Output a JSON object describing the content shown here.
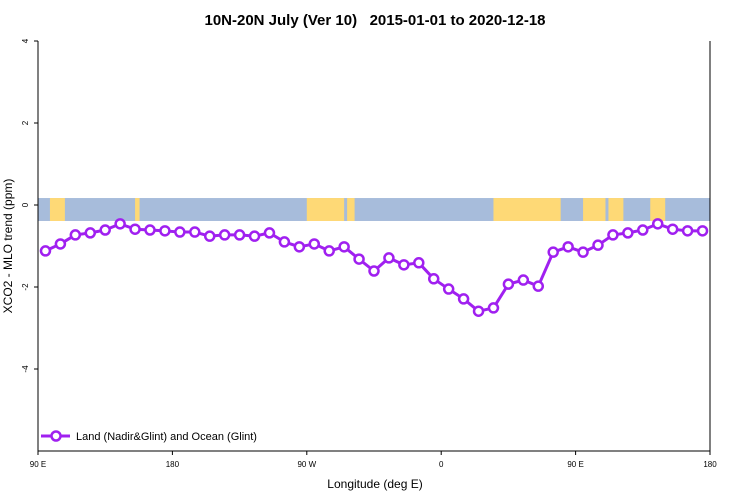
{
  "chart_data": {
    "type": "line",
    "title": "10N-20N July (Ver 10)   2015-01-01 to 2020-12-18",
    "xlabel": "Longitude (deg E)",
    "ylabel": "XCO2 - MLO trend (ppm)",
    "xlim": [
      90,
      540
    ],
    "ylim": [
      -6,
      4
    ],
    "x_ticks": [
      {
        "value": 90,
        "label": "90 E"
      },
      {
        "value": 180,
        "label": "180"
      },
      {
        "value": 270,
        "label": "90 W"
      },
      {
        "value": 360,
        "label": "0"
      },
      {
        "value": 450,
        "label": "90 E"
      },
      {
        "value": 540,
        "label": "180"
      }
    ],
    "y_ticks": [
      {
        "value": 4,
        "label": "4"
      },
      {
        "value": 2,
        "label": "2"
      },
      {
        "value": 0,
        "label": "0"
      },
      {
        "value": -2,
        "label": "-2"
      },
      {
        "value": -4,
        "label": "-4"
      }
    ],
    "legend": {
      "position": "bottom-left",
      "label": "Land (Nadir&Glint) and Ocean (Glint)"
    },
    "color": "#a020f0",
    "map_band": {
      "ymax": 0.17,
      "ymin": -0.39,
      "ocean": "#a7bcdb",
      "land": "#fed976"
    },
    "series": [
      {
        "name": "Land (Nadir&Glint) and Ocean (Glint)",
        "x": [
          95,
          105,
          115,
          125,
          135,
          145,
          155,
          165,
          175,
          185,
          195,
          205,
          215,
          225,
          235,
          245,
          255,
          265,
          275,
          285,
          295,
          305,
          315,
          325,
          335,
          345,
          355,
          365,
          375,
          385,
          395,
          405,
          415,
          425,
          435,
          445,
          455,
          465,
          475,
          485,
          495,
          505,
          515,
          525,
          535
        ],
        "y": [
          -1.12,
          -0.95,
          -0.73,
          -0.68,
          -0.61,
          -0.46,
          -0.59,
          -0.61,
          -0.63,
          -0.66,
          -0.66,
          -0.76,
          -0.73,
          -0.73,
          -0.76,
          -0.68,
          -0.9,
          -1.02,
          -0.95,
          -1.12,
          -1.02,
          -1.32,
          -1.61,
          -1.29,
          -1.46,
          -1.41,
          -1.8,
          -2.05,
          -2.29,
          -2.59,
          -2.51,
          -1.93,
          -1.83,
          -1.98,
          -1.15,
          -1.02,
          -1.15,
          -0.98,
          -0.73,
          -0.68,
          -0.61,
          -0.46,
          -0.59,
          -0.63,
          -0.63
        ]
      }
    ]
  }
}
